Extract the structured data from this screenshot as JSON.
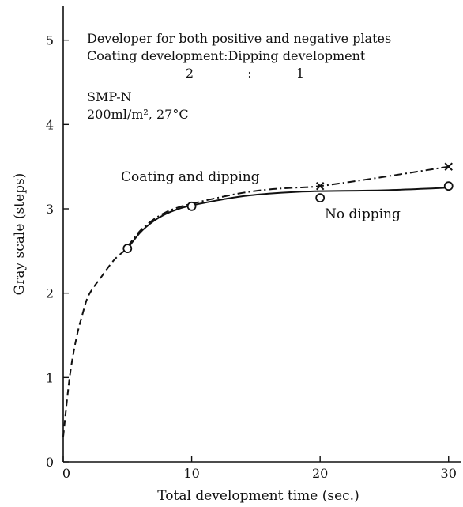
{
  "chart_data": {
    "type": "line",
    "xlabel": "Total development time (sec.)",
    "ylabel": "Gray scale (steps)",
    "xlim": [
      0,
      31
    ],
    "ylim": [
      0,
      5.4
    ],
    "xticks": [
      0,
      10,
      20,
      30
    ],
    "yticks": [
      0,
      1,
      2,
      3,
      4,
      5
    ],
    "grid": false,
    "annotations": {
      "line1": "Developer for both positive and negative plates",
      "line2": "Coating development:Dipping development",
      "ratio_left": "2",
      "ratio_sep": ":",
      "ratio_right": "1",
      "product": "SMP-N",
      "conditions": "200ml/m², 27°C"
    },
    "series": [
      {
        "name": "Coating and dipping",
        "line_style": "dashdot",
        "marker": "x",
        "points": [
          [
            5,
            2.55
          ],
          [
            10,
            3.05
          ],
          [
            20,
            3.27
          ],
          [
            30,
            3.5
          ]
        ]
      },
      {
        "name": "No dipping",
        "line_style": "solid",
        "marker": "o",
        "points": [
          [
            5,
            2.53
          ],
          [
            10,
            3.03
          ],
          [
            20,
            3.13
          ],
          [
            30,
            3.27
          ]
        ]
      }
    ],
    "initial_curve": {
      "line_style": "dashed",
      "points": [
        [
          0,
          0.3
        ],
        [
          0.5,
          1.0
        ],
        [
          1,
          1.45
        ],
        [
          1.5,
          1.75
        ],
        [
          2,
          1.98
        ],
        [
          3,
          2.2
        ],
        [
          4,
          2.4
        ],
        [
          5,
          2.53
        ]
      ]
    },
    "fitted_curve": {
      "points": [
        [
          5,
          2.53
        ],
        [
          6,
          2.72
        ],
        [
          7,
          2.85
        ],
        [
          8,
          2.94
        ],
        [
          9,
          3.0
        ],
        [
          10,
          3.04
        ],
        [
          12,
          3.1
        ],
        [
          14,
          3.15
        ],
        [
          16,
          3.18
        ],
        [
          18,
          3.2
        ],
        [
          20,
          3.21
        ],
        [
          25,
          3.22
        ],
        [
          30,
          3.25
        ]
      ]
    },
    "dashdot_curve": {
      "points": [
        [
          5,
          2.55
        ],
        [
          6,
          2.74
        ],
        [
          7,
          2.87
        ],
        [
          8,
          2.96
        ],
        [
          9,
          3.02
        ],
        [
          10,
          3.06
        ],
        [
          12,
          3.13
        ],
        [
          14,
          3.19
        ],
        [
          16,
          3.23
        ],
        [
          18,
          3.25
        ],
        [
          20,
          3.27
        ],
        [
          25,
          3.38
        ],
        [
          30,
          3.5
        ]
      ]
    }
  }
}
